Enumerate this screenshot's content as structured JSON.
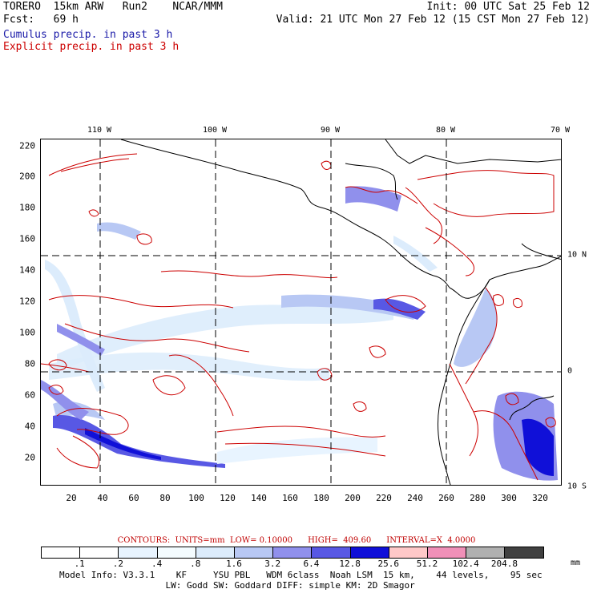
{
  "header": {
    "model": "TORERO  15km ARW   Run2    NCAR/MMM",
    "init": "Init: 00 UTC Sat 25 Feb 12",
    "fcst": "Fcst:   69 h",
    "valid": "Valid: 21 UTC Mon 27 Feb 12 (15 CST Mon 27 Feb 12)",
    "cumulus": "Cumulus precip. in past 3 h",
    "explicit": "Explicit precip. in past 3 h",
    "cumulus_color": "#1a1aa8",
    "explicit_color": "#cc0000"
  },
  "map": {
    "lon_labels": [
      "110 W",
      "100 W",
      "90 W",
      "80 W",
      "70 W"
    ],
    "lat_labels": [
      "10 N",
      "0",
      "10 S"
    ],
    "y_ticks": [
      "220",
      "200",
      "180",
      "160",
      "140",
      "120",
      "100",
      "80",
      "60",
      "40",
      "20"
    ],
    "x_ticks": [
      "20",
      "40",
      "60",
      "80",
      "100",
      "120",
      "140",
      "160",
      "180",
      "200",
      "220",
      "240",
      "260",
      "280",
      "300",
      "320"
    ]
  },
  "legend": {
    "contours_text": "CONTOURS:  UNITS=mm  LOW= 0.10000      HIGH=  409.60      INTERVAL=X  4.0000",
    "colors": [
      "#ffffff",
      "#ffffff",
      "#e8f4ff",
      "#f4fcff",
      "#dcecfc",
      "#b8c8f4",
      "#9090ec",
      "#5858e4",
      "#1010d8",
      "#ffc8c8",
      "#f090b8",
      "#b0b0b0",
      "#404040",
      "#d8a0f8"
    ],
    "labels": [
      ".1",
      ".2",
      ".4",
      ".8",
      "1.6",
      "3.2",
      "6.4",
      "12.8",
      "25.6",
      "51.2",
      "102.4",
      "204.8"
    ],
    "unit": "mm"
  },
  "footer": {
    "line1": "Model Info: V3.3.1    KF     YSU PBL   WDM 6class  Noah LSM  15 km,    44 levels,    95 sec",
    "line2": "                    LW: Godd SW: Goddard DIFF: simple KM: 2D Smagor"
  }
}
